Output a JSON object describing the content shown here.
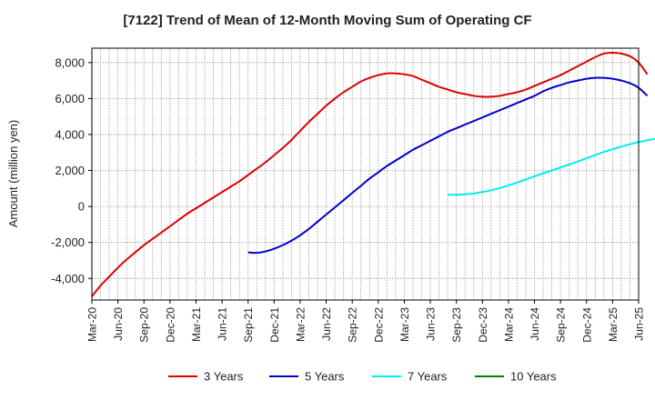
{
  "chart_data": {
    "type": "line",
    "title": "[7122]  Trend of Mean of 12-Month Moving Sum of Operating CF",
    "xlabel": "",
    "ylabel": "Amount (million yen)",
    "ylim": [
      -5200,
      8800
    ],
    "yticks": [
      -4000,
      -2000,
      0,
      2000,
      4000,
      6000,
      8000
    ],
    "ytick_labels": [
      "-4,000",
      "-2,000",
      "0",
      "2,000",
      "4,000",
      "6,000",
      "8,000"
    ],
    "xticks": [
      "Mar-20",
      "Jun-20",
      "Sep-20",
      "Dec-20",
      "Mar-21",
      "Jun-21",
      "Sep-21",
      "Dec-21",
      "Mar-22",
      "Jun-22",
      "Sep-22",
      "Dec-22",
      "Mar-23",
      "Jun-23",
      "Sep-23",
      "Dec-23",
      "Mar-24",
      "Jun-24",
      "Sep-24",
      "Dec-24",
      "Mar-25",
      "Jun-25"
    ],
    "grid": true,
    "legend_position": "bottom",
    "series": [
      {
        "name": "3 Years",
        "color": "#dd0000",
        "start": "Mar-20",
        "values": [
          -5000,
          -4400,
          -3900,
          -3400,
          -2950,
          -2550,
          -2150,
          -1800,
          -1450,
          -1100,
          -750,
          -400,
          -100,
          200,
          500,
          800,
          1100,
          1400,
          1750,
          2100,
          2450,
          2850,
          3250,
          3700,
          4200,
          4700,
          5150,
          5600,
          6000,
          6350,
          6650,
          6950,
          7150,
          7300,
          7400,
          7400,
          7350,
          7250,
          7050,
          6850,
          6650,
          6500,
          6350,
          6250,
          6150,
          6100,
          6100,
          6150,
          6250,
          6350,
          6500,
          6700,
          6900,
          7100,
          7300,
          7550,
          7800,
          8050,
          8300,
          8500,
          8550,
          8500,
          8350,
          8000,
          7350
        ]
      },
      {
        "name": "5 Years",
        "color": "#0000cc",
        "start": "Sep-21",
        "values": [
          -2550,
          -2580,
          -2500,
          -2350,
          -2150,
          -1900,
          -1600,
          -1250,
          -850,
          -450,
          -50,
          350,
          750,
          1150,
          1550,
          1900,
          2250,
          2550,
          2850,
          3150,
          3400,
          3650,
          3900,
          4150,
          4350,
          4550,
          4750,
          4950,
          5150,
          5350,
          5550,
          5750,
          5950,
          6150,
          6400,
          6600,
          6750,
          6900,
          7000,
          7100,
          7150,
          7150,
          7100,
          7000,
          6850,
          6600,
          6150
        ]
      },
      {
        "name": "7 Years",
        "color": "#00eeee",
        "start": "Aug-23",
        "values": [
          650,
          650,
          680,
          720,
          800,
          900,
          1020,
          1170,
          1330,
          1500,
          1670,
          1840,
          2000,
          2170,
          2340,
          2500,
          2680,
          2860,
          3030,
          3180,
          3330,
          3460,
          3580,
          3680,
          3770,
          3860
        ]
      },
      {
        "name": "10 Years",
        "color": "#008000",
        "start": "",
        "values": []
      }
    ]
  }
}
